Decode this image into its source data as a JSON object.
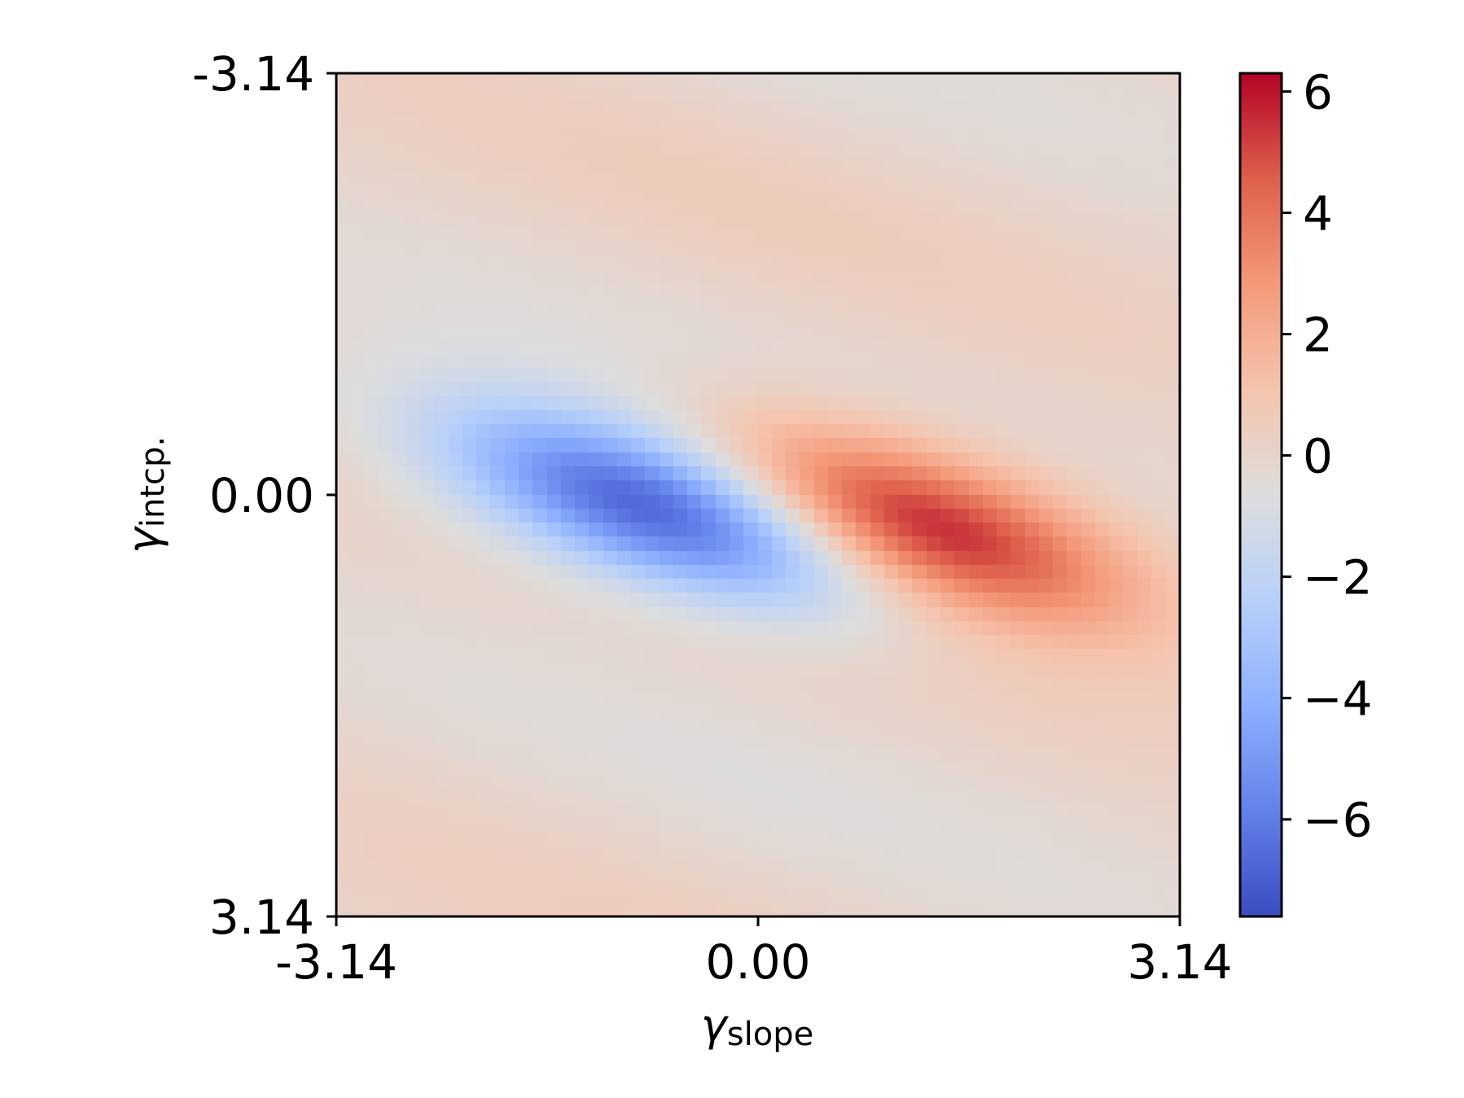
{
  "chart_data": {
    "type": "heatmap",
    "title": "",
    "x": {
      "symbol": "γ",
      "subscript": "slope",
      "range": [
        -3.14,
        3.14
      ],
      "ticks": [
        -3.14,
        0.0,
        3.14
      ],
      "tick_labels": [
        "-3.14",
        "0.00",
        "3.14"
      ]
    },
    "y": {
      "symbol": "γ",
      "subscript": "intcp.",
      "range_top_to_bottom": [
        -3.14,
        3.14
      ],
      "ticks": [
        -3.14,
        0.0,
        3.14
      ],
      "tick_labels": [
        "-3.14",
        "0.00",
        "3.14"
      ],
      "inverted": true
    },
    "colormap": "coolwarm",
    "colorbar": {
      "range": [
        -7.6,
        6.3
      ],
      "ticks": [
        6,
        4,
        2,
        0,
        -2,
        -4,
        -6
      ],
      "tick_labels": [
        "6",
        "4",
        "2",
        "0",
        "−2",
        "−4",
        "−6"
      ],
      "placement": "right"
    },
    "features": [
      {
        "kind": "minimum",
        "x": -0.75,
        "y": 0.1,
        "value": -7.6
      },
      {
        "kind": "maximum",
        "x": 1.2,
        "y": 0.22,
        "value": 6.3
      }
    ],
    "grid_resolution": 60,
    "grid": false
  }
}
